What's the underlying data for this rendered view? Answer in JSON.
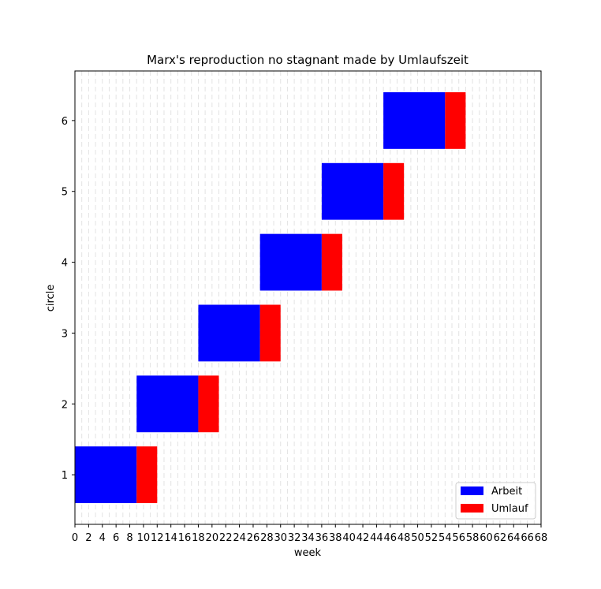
{
  "chart_data": {
    "type": "bar",
    "orientation": "horizontal",
    "title": "Marx's reproduction no stagnant made by Umlaufszeit",
    "xlabel": "week",
    "ylabel": "circle",
    "xlim": [
      0,
      68
    ],
    "ylim": [
      0.3,
      6.7
    ],
    "x_ticks": [
      0,
      2,
      4,
      6,
      8,
      10,
      12,
      14,
      16,
      18,
      20,
      22,
      24,
      26,
      28,
      30,
      32,
      34,
      36,
      38,
      40,
      42,
      44,
      46,
      48,
      50,
      52,
      54,
      56,
      58,
      60,
      62,
      64,
      66,
      68
    ],
    "y_ticks": [
      1,
      2,
      3,
      4,
      5,
      6
    ],
    "grid": "vertical dashed",
    "legend_position": "lower-right",
    "bar_height": 0.8,
    "series": [
      {
        "name": "Arbeit",
        "color": "#0000ff",
        "bars": [
          {
            "circle": 1,
            "start": 0,
            "end": 9
          },
          {
            "circle": 2,
            "start": 9,
            "end": 18
          },
          {
            "circle": 3,
            "start": 18,
            "end": 27
          },
          {
            "circle": 4,
            "start": 27,
            "end": 36
          },
          {
            "circle": 5,
            "start": 36,
            "end": 45
          },
          {
            "circle": 6,
            "start": 45,
            "end": 54
          }
        ]
      },
      {
        "name": "Umlauf",
        "color": "#ff0000",
        "bars": [
          {
            "circle": 1,
            "start": 9,
            "end": 12
          },
          {
            "circle": 2,
            "start": 18,
            "end": 21
          },
          {
            "circle": 3,
            "start": 27,
            "end": 30
          },
          {
            "circle": 4,
            "start": 36,
            "end": 39
          },
          {
            "circle": 5,
            "start": 45,
            "end": 48
          },
          {
            "circle": 6,
            "start": 54,
            "end": 57
          }
        ]
      }
    ]
  }
}
